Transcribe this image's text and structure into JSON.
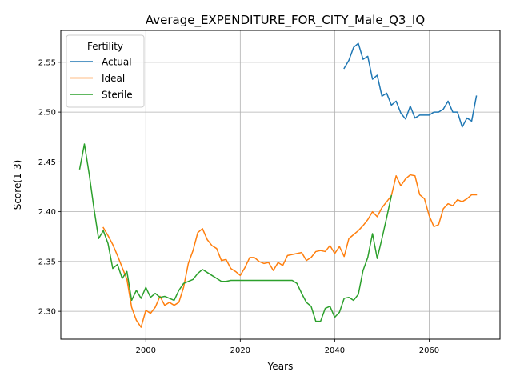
{
  "chart_data": {
    "type": "line",
    "title": "Average_EXPENDITURE_FOR_CITY_Male_Q3_IQ",
    "xlabel": "Years",
    "ylabel": "Score(1-3)",
    "xlim": [
      1982,
      2075
    ],
    "ylim": [
      2.272,
      2.582
    ],
    "xticks": [
      2000,
      2020,
      2040,
      2060
    ],
    "yticks": [
      2.3,
      2.35,
      2.4,
      2.45,
      2.5,
      2.55
    ],
    "xtick_labels": [
      "2000",
      "2020",
      "2040",
      "2060"
    ],
    "ytick_labels": [
      "2.30",
      "2.35",
      "2.40",
      "2.45",
      "2.50",
      "2.55"
    ],
    "grid": true,
    "legend": {
      "title": "Fertility",
      "placement": "upper-left"
    },
    "series": [
      {
        "name": "Actual",
        "color": "#1f77b4",
        "x": [
          2042,
          2043,
          2044,
          2045,
          2046,
          2047,
          2048,
          2049,
          2050,
          2051,
          2052,
          2053,
          2054,
          2055,
          2056,
          2057,
          2058,
          2059,
          2060,
          2061,
          2062,
          2063,
          2064,
          2065,
          2066,
          2067,
          2068,
          2069,
          2070
        ],
        "values": [
          2.544,
          2.552,
          2.565,
          2.569,
          2.553,
          2.556,
          2.533,
          2.537,
          2.516,
          2.519,
          2.507,
          2.511,
          2.499,
          2.493,
          2.506,
          2.494,
          2.497,
          2.497,
          2.497,
          2.5,
          2.5,
          2.503,
          2.511,
          2.5,
          2.5,
          2.485,
          2.494,
          2.491,
          2.516
        ]
      },
      {
        "name": "Ideal",
        "color": "#ff7f0e",
        "x": [
          1991,
          1992,
          1993,
          1994,
          1995,
          1996,
          1997,
          1998,
          1999,
          2000,
          2001,
          2002,
          2003,
          2004,
          2005,
          2006,
          2007,
          2008,
          2009,
          2010,
          2011,
          2012,
          2013,
          2014,
          2015,
          2016,
          2017,
          2018,
          2019,
          2020,
          2021,
          2022,
          2023,
          2024,
          2025,
          2026,
          2027,
          2028,
          2029,
          2030,
          2031,
          2032,
          2033,
          2034,
          2035,
          2036,
          2037,
          2038,
          2039,
          2040,
          2041,
          2042,
          2043,
          2044,
          2045,
          2046,
          2047,
          2048,
          2049,
          2050,
          2051,
          2052,
          2053,
          2054,
          2055,
          2056,
          2057,
          2058,
          2059,
          2060,
          2061,
          2062,
          2063,
          2064,
          2065,
          2066,
          2067,
          2068,
          2069,
          2070
        ],
        "values": [
          2.384,
          2.376,
          2.367,
          2.356,
          2.344,
          2.332,
          2.304,
          2.291,
          2.284,
          2.301,
          2.298,
          2.304,
          2.315,
          2.306,
          2.309,
          2.306,
          2.309,
          2.324,
          2.348,
          2.361,
          2.379,
          2.383,
          2.372,
          2.366,
          2.363,
          2.351,
          2.352,
          2.343,
          2.34,
          2.336,
          2.344,
          2.354,
          2.354,
          2.35,
          2.348,
          2.349,
          2.341,
          2.349,
          2.346,
          2.356,
          2.357,
          2.358,
          2.359,
          2.351,
          2.354,
          2.36,
          2.361,
          2.36,
          2.366,
          2.358,
          2.365,
          2.355,
          2.373,
          2.377,
          2.381,
          2.386,
          2.392,
          2.4,
          2.395,
          2.404,
          2.41,
          2.416,
          2.436,
          2.426,
          2.433,
          2.437,
          2.436,
          2.417,
          2.413,
          2.396,
          2.385,
          2.387,
          2.403,
          2.408,
          2.406,
          2.412,
          2.41,
          2.413,
          2.417,
          2.417
        ]
      },
      {
        "name": "Sterile",
        "color": "#2ca02c",
        "x": [
          1986,
          1987,
          1988,
          1989,
          1990,
          1991,
          1992,
          1993,
          1994,
          1995,
          1996,
          1997,
          1998,
          1999,
          2000,
          2001,
          2002,
          2003,
          2004,
          2005,
          2006,
          2007,
          2008,
          2009,
          2010,
          2011,
          2012,
          2013,
          2014,
          2015,
          2016,
          2017,
          2018,
          2019,
          2020,
          2021,
          2022,
          2023,
          2024,
          2025,
          2026,
          2027,
          2028,
          2029,
          2030,
          2031,
          2032,
          2033,
          2034,
          2035,
          2036,
          2037,
          2038,
          2039,
          2040,
          2041,
          2042,
          2043,
          2044,
          2045,
          2046,
          2047,
          2048,
          2049,
          2050,
          2051,
          2052
        ],
        "values": [
          2.443,
          2.468,
          2.438,
          2.404,
          2.373,
          2.381,
          2.368,
          2.343,
          2.347,
          2.333,
          2.34,
          2.311,
          2.321,
          2.313,
          2.324,
          2.314,
          2.318,
          2.314,
          2.315,
          2.313,
          2.311,
          2.321,
          2.328,
          2.33,
          2.332,
          2.338,
          2.342,
          2.339,
          2.336,
          2.333,
          2.33,
          2.33,
          2.331,
          2.331,
          2.331,
          2.331,
          2.331,
          2.331,
          2.331,
          2.331,
          2.331,
          2.331,
          2.331,
          2.331,
          2.331,
          2.331,
          2.328,
          2.318,
          2.309,
          2.305,
          2.29,
          2.29,
          2.303,
          2.305,
          2.294,
          2.299,
          2.313,
          2.314,
          2.311,
          2.317,
          2.341,
          2.354,
          2.378,
          2.353,
          2.373,
          2.394,
          2.416
        ]
      }
    ]
  }
}
